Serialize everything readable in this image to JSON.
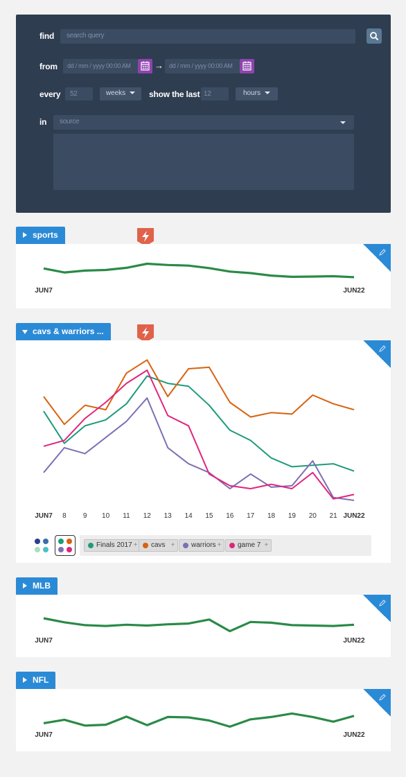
{
  "query": {
    "find_label": "find",
    "search_placeholder": "search query",
    "from_label": "from",
    "date_placeholder": "dd / mm / yyyy  00:00 AM",
    "arrow": "→",
    "every_label": "every",
    "every_value": "52",
    "every_unit": "weeks",
    "show_last_label": "show the last",
    "show_last_value": "12",
    "show_last_unit": "hours",
    "in_label": "in",
    "source_placeholder": "source"
  },
  "colors": {
    "panel": "#2e3d50",
    "accent_blue": "#2b8ad6",
    "alert_red": "#e0624a",
    "calendar_purple": "#8e44ad",
    "trend_green": "#2a8a47"
  },
  "icons": {
    "search": "search-icon",
    "calendar": "calendar-icon",
    "alert": "lightning-icon",
    "expand": "triangle-right-icon",
    "collapse": "triangle-down-icon",
    "edit": "pencil-icon",
    "add": "plus-icon"
  },
  "topics": [
    {
      "name": "sports",
      "expanded": false
    },
    {
      "name": "cavs & warriors ...",
      "expanded": true
    },
    {
      "name": "MLB",
      "expanded": false
    },
    {
      "name": "NFL",
      "expanded": false
    }
  ],
  "chart_data": [
    {
      "type": "line",
      "topic": "sports",
      "x": [
        "JUN7",
        "8",
        "9",
        "10",
        "11",
        "12",
        "13",
        "14",
        "15",
        "16",
        "17",
        "18",
        "19",
        "20",
        "21",
        "JUN22"
      ],
      "x_labels_shown": [
        "JUN7",
        "JUN22"
      ],
      "series": [
        {
          "color": "#2a8a47",
          "values": [
            0.55,
            0.42,
            0.48,
            0.5,
            0.57,
            0.7,
            0.66,
            0.64,
            0.56,
            0.45,
            0.4,
            0.32,
            0.28,
            0.29,
            0.3,
            0.27
          ]
        }
      ],
      "ylim": [
        0,
        1
      ]
    },
    {
      "type": "line",
      "topic": "cavs & warriors ...",
      "x": [
        "JUN7",
        "8",
        "9",
        "10",
        "11",
        "12",
        "13",
        "14",
        "15",
        "16",
        "17",
        "18",
        "19",
        "20",
        "21",
        "JUN22"
      ],
      "x_labels_shown": [
        "JUN7",
        "8",
        "9",
        "10",
        "11",
        "12",
        "13",
        "14",
        "15",
        "16",
        "17",
        "18",
        "19",
        "20",
        "21",
        "JUN22"
      ],
      "series": [
        {
          "name": "Finals 2017",
          "color": "#1d9b7a",
          "values": [
            0.62,
            0.4,
            0.52,
            0.56,
            0.67,
            0.86,
            0.81,
            0.79,
            0.66,
            0.49,
            0.42,
            0.3,
            0.24,
            0.25,
            0.26,
            0.21
          ]
        },
        {
          "name": "cavs",
          "color": "#d8620f",
          "values": [
            0.72,
            0.53,
            0.66,
            0.63,
            0.88,
            0.97,
            0.72,
            0.91,
            0.92,
            0.68,
            0.58,
            0.61,
            0.6,
            0.73,
            0.67,
            0.63
          ]
        },
        {
          "name": "warriors",
          "color": "#7d6fb4",
          "values": [
            0.2,
            0.37,
            0.33,
            0.44,
            0.55,
            0.71,
            0.37,
            0.26,
            0.2,
            0.09,
            0.19,
            0.1,
            0.11,
            0.28,
            0.03,
            0.01
          ]
        },
        {
          "name": "game 7",
          "color": "#e0257e",
          "values": [
            0.38,
            0.42,
            0.57,
            0.68,
            0.81,
            0.9,
            0.59,
            0.52,
            0.19,
            0.11,
            0.09,
            0.12,
            0.09,
            0.2,
            0.02,
            0.05
          ]
        }
      ],
      "ylim": [
        0,
        1
      ],
      "legend_entries": [
        "Finals 2017",
        "cavs",
        "warriors",
        "game 7"
      ]
    },
    {
      "type": "line",
      "topic": "MLB",
      "x": [
        "JUN7",
        "8",
        "9",
        "10",
        "11",
        "12",
        "13",
        "14",
        "15",
        "16",
        "17",
        "18",
        "19",
        "20",
        "21",
        "JUN22"
      ],
      "x_labels_shown": [
        "JUN7",
        "JUN22"
      ],
      "series": [
        {
          "color": "#2a8a47",
          "values": [
            0.62,
            0.52,
            0.45,
            0.43,
            0.46,
            0.44,
            0.47,
            0.49,
            0.59,
            0.3,
            0.53,
            0.51,
            0.45,
            0.44,
            0.43,
            0.46
          ]
        }
      ],
      "ylim": [
        0,
        1
      ]
    },
    {
      "type": "line",
      "topic": "NFL",
      "x": [
        "JUN7",
        "8",
        "9",
        "10",
        "11",
        "12",
        "13",
        "14",
        "15",
        "16",
        "17",
        "18",
        "19",
        "20",
        "21",
        "JUN22"
      ],
      "x_labels_shown": [
        "JUN7",
        "JUN22"
      ],
      "series": [
        {
          "color": "#2a8a47",
          "values": [
            0.35,
            0.44,
            0.29,
            0.31,
            0.52,
            0.3,
            0.51,
            0.5,
            0.42,
            0.26,
            0.45,
            0.51,
            0.6,
            0.51,
            0.39,
            0.54
          ]
        }
      ],
      "ylim": [
        0,
        1
      ]
    }
  ]
}
